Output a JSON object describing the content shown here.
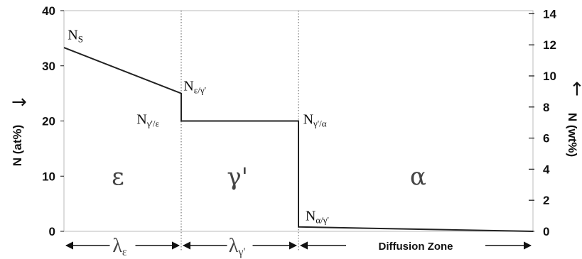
{
  "chart_data": {
    "type": "line",
    "y_left": {
      "label": "N (at%)",
      "arrow": "→",
      "lim": [
        0,
        40
      ],
      "ticks": [
        "0",
        "10",
        "20",
        "30",
        "40"
      ]
    },
    "y_right": {
      "label": "N (wt%)",
      "arrow": "→",
      "lim": [
        0,
        14.2
      ],
      "ticks": [
        "0",
        "2",
        "4",
        "6",
        "8",
        "10",
        "12",
        "14"
      ]
    },
    "x": {
      "lim": [
        0,
        100
      ],
      "ticks": []
    },
    "boundaries": [
      25,
      50
    ],
    "series": [
      {
        "x": [
          0,
          25,
          25,
          50,
          50,
          100
        ],
        "y": [
          33.3,
          25,
          20,
          20,
          0.8,
          0
        ]
      }
    ],
    "phases": [
      {
        "label": "ε",
        "x": 11.5,
        "y": 10
      },
      {
        "label": "γ'",
        "x": 37,
        "y": 10
      },
      {
        "label": "α",
        "x": 75.5,
        "y": 10
      }
    ],
    "annotations": [
      {
        "main": "N",
        "sub": "S",
        "x": 0.8,
        "y": 34.8
      },
      {
        "main": "N",
        "sub": "ε/γ'",
        "x": 25.5,
        "y": 25.5
      },
      {
        "main": "N",
        "sub": "γ'/ε",
        "x": 15.5,
        "y": 19.5
      },
      {
        "main": "N",
        "sub": "γ'/α",
        "x": 51,
        "y": 19.5
      },
      {
        "main": "N",
        "sub": "α/γ'",
        "x": 51.5,
        "y": 2
      }
    ],
    "regions": [
      {
        "main": "λ",
        "sub": "ε",
        "from": 0,
        "to": 25
      },
      {
        "main": "λ",
        "sub": "γ'",
        "from": 25,
        "to": 50
      },
      {
        "main": "Diffusion Zone",
        "sub": "",
        "from": 50,
        "to": 100
      }
    ]
  }
}
